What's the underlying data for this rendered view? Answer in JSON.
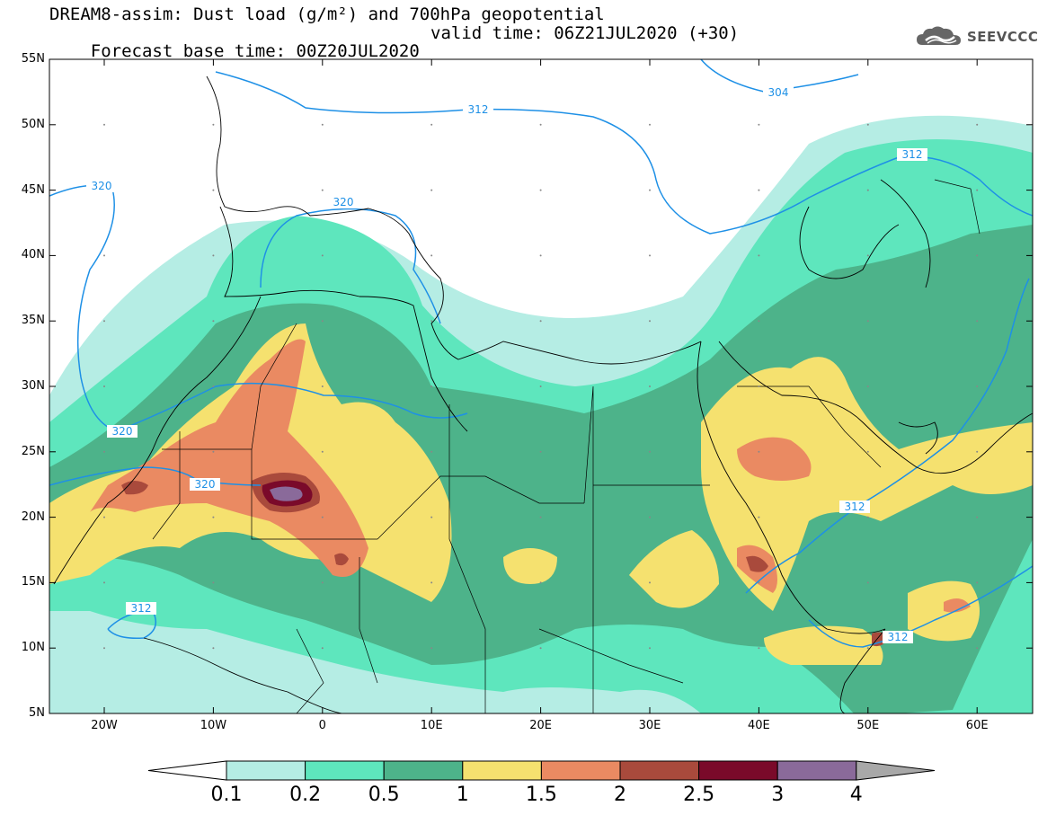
{
  "title": {
    "line1": "DREAM8-assim: Dust load (g/m²) and 700hPa geopotential",
    "line2_base": "Forecast base time: 00Z20JUL2020",
    "line2_valid": "valid time: 06Z21JUL2020 (+30)"
  },
  "logo": {
    "text": "SEEVCCC",
    "icon": "cloud-logo-icon"
  },
  "axes": {
    "lat_labels": [
      "55N",
      "50N",
      "45N",
      "40N",
      "35N",
      "30N",
      "25N",
      "20N",
      "15N",
      "10N",
      "5N"
    ],
    "lon_labels": [
      "20W",
      "10W",
      "0",
      "10E",
      "20E",
      "30E",
      "40E",
      "50E",
      "60E"
    ]
  },
  "contour_labels": [
    "320",
    "312",
    "304",
    "320",
    "320",
    "320",
    "312",
    "312",
    "312",
    "312"
  ],
  "colorbar": {
    "labels": [
      "0.1",
      "0.2",
      "0.5",
      "1",
      "1.5",
      "2",
      "2.5",
      "3",
      "4"
    ],
    "colors": [
      "#b5ede4",
      "#5ee6bd",
      "#4db38a",
      "#f5e16f",
      "#ea8a62",
      "#a94a3c",
      "#7a0a2a",
      "#8a6a9a",
      "#a8a8a8"
    ]
  }
}
